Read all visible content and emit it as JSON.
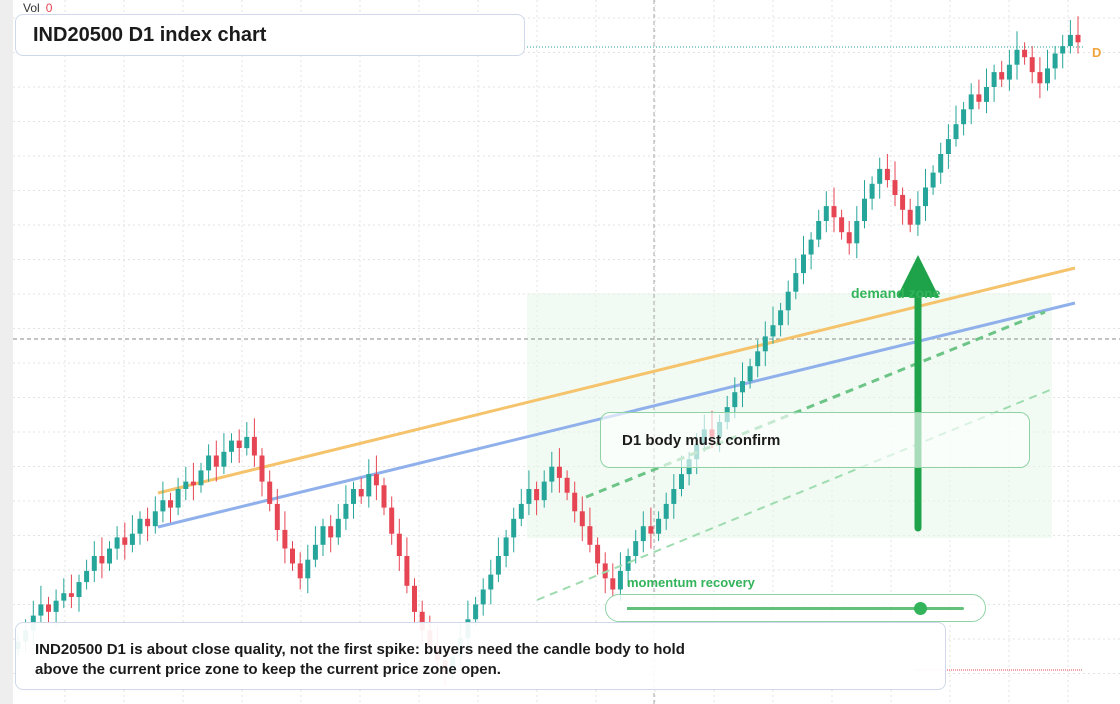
{
  "title": "IND20500 D1 index chart",
  "volume": {
    "label": "Vol",
    "value": "0"
  },
  "price_badge": "D",
  "annotations": {
    "zone_label": "demand zone",
    "confirm_text": "D1 body must confirm",
    "momentum_label": "momentum recovery",
    "momentum_level": 0.87,
    "note_lines": [
      "IND20500 D1 is about close quality, not the first spike: buyers need the candle body to hold",
      "above the current price zone to keep the current price zone open."
    ]
  },
  "colors": {
    "up": "#26a69a",
    "down": "#e64553",
    "accent_green": "#33b35a",
    "orange_line": "#f5c36b",
    "blue_line": "#8fb0ea",
    "grid": "#e3e3e3"
  },
  "chart_data": {
    "type": "candlestick",
    "symbol": "IND20500",
    "timeframe": "D1",
    "closes": [
      5,
      8,
      12,
      15,
      13,
      16,
      18,
      17,
      21,
      24,
      28,
      26,
      30,
      33,
      31,
      34,
      38,
      36,
      40,
      43,
      41,
      46,
      48,
      47,
      51,
      55,
      52,
      56,
      59,
      57,
      60,
      55,
      48,
      42,
      35,
      30,
      26,
      22,
      27,
      31,
      36,
      33,
      38,
      42,
      46,
      44,
      50,
      47,
      41,
      34,
      28,
      20,
      13,
      8,
      4,
      0,
      -3,
      1,
      6,
      11,
      15,
      19,
      23,
      28,
      33,
      38,
      42,
      46,
      43,
      48,
      52,
      49,
      45,
      40,
      36,
      31,
      26,
      22,
      19,
      24,
      28,
      32,
      36,
      34,
      38,
      42,
      46,
      50,
      54,
      58,
      62,
      60,
      64,
      68,
      72,
      75,
      79,
      83,
      87,
      90,
      94,
      99,
      104,
      109,
      113,
      118,
      122,
      119,
      115,
      112,
      118,
      124,
      128,
      132,
      129,
      125,
      121,
      117,
      122,
      127,
      131,
      136,
      140,
      144,
      148,
      152,
      150,
      154,
      158,
      156,
      160,
      164,
      162,
      158,
      155,
      159,
      163,
      165,
      168,
      166
    ],
    "trendlines": [
      {
        "color": "orange",
        "from": [
          0.14,
          0.7
        ],
        "to": [
          0.96,
          0.38
        ]
      },
      {
        "color": "blue",
        "from": [
          0.14,
          0.75
        ],
        "to": [
          0.96,
          0.43
        ]
      }
    ]
  }
}
